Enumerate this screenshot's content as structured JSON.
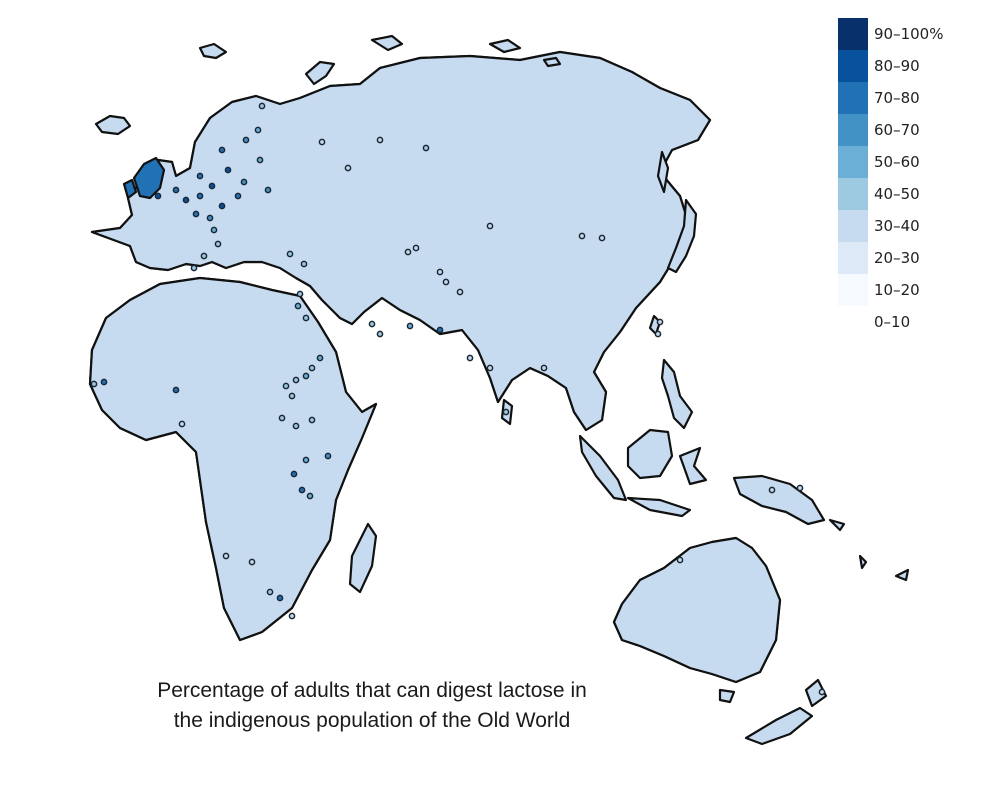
{
  "colors": {
    "background": "#ffffff",
    "outline": "#111111",
    "scale": [
      "#f6f9fe",
      "#dde9f6",
      "#c6dbef",
      "#9ecae1",
      "#6baed6",
      "#4292c6",
      "#2171b5",
      "#08519c",
      "#08306b"
    ]
  },
  "legend": {
    "items": [
      {
        "label": "90–100%",
        "color": "#08306b"
      },
      {
        "label": "80–90",
        "color": "#08519c"
      },
      {
        "label": "70–80",
        "color": "#2171b5"
      },
      {
        "label": "60–70",
        "color": "#4292c6"
      },
      {
        "label": "50–60",
        "color": "#6baed6"
      },
      {
        "label": "40–50",
        "color": "#9ecae1"
      },
      {
        "label": "30–40",
        "color": "#c6dbef"
      },
      {
        "label": "20–30",
        "color": "#dde9f6"
      },
      {
        "label": "10–20",
        "color": "#f6f9fe"
      },
      {
        "label": "0–10",
        "color": "#ffffff"
      }
    ]
  },
  "caption": {
    "line1": "Percentage of adults that can digest lactose in",
    "line2": "the indigenous population of the Old World"
  }
}
